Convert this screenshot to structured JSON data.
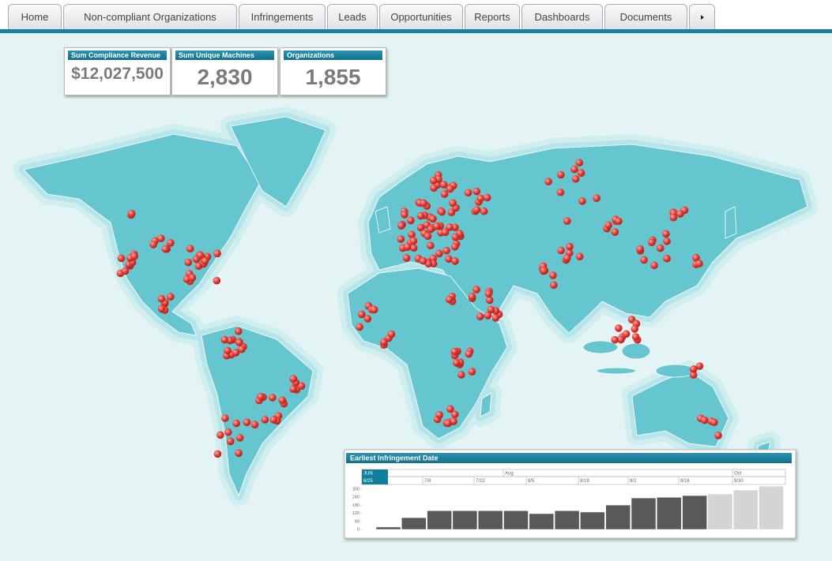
{
  "nav": {
    "tabs": [
      "Home",
      "Non-compliant Organizations",
      "Infringements",
      "Leads",
      "Opportunities",
      "Reports",
      "Dashboards",
      "Documents"
    ]
  },
  "kpis": [
    {
      "label": "Sum Compliance Revenue",
      "value": "$12,027,500"
    },
    {
      "label": "Sum Unique Machines",
      "value": "2,830"
    },
    {
      "label": "Organizations",
      "value": "1,855"
    }
  ],
  "chart_data": {
    "type": "bar",
    "title": "Earliest Infringement Date",
    "months": [
      "JUN",
      "Aug",
      "Oct"
    ],
    "weeks": [
      "6/25",
      "7/8",
      "7/22",
      "8/5",
      "8/19",
      "9/2",
      "9/16",
      "9/30"
    ],
    "values": [
      18,
      88,
      140,
      140,
      140,
      140,
      118,
      140,
      130,
      182,
      235,
      240,
      253,
      265,
      294,
      323
    ],
    "colors": [
      "#58595b",
      "#58595b",
      "#58595b",
      "#58595b",
      "#58595b",
      "#58595b",
      "#58595b",
      "#58595b",
      "#58595b",
      "#58595b",
      "#58595b",
      "#58595b",
      "#58595b",
      "#d4d4d4",
      "#d4d4d4",
      "#d4d4d4"
    ],
    "ylim": [
      0,
      330
    ],
    "yticks": [
      0,
      60,
      120,
      180,
      240,
      300
    ]
  }
}
